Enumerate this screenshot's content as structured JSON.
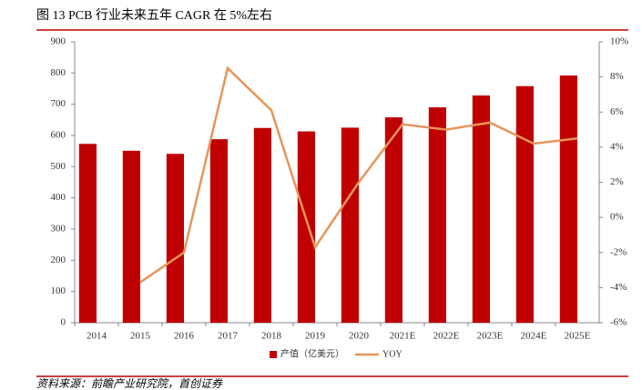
{
  "chart_data": {
    "type": "bar",
    "title": "图 13 PCB 行业未来五年 CAGR 在 5%左右",
    "source": "资料来源：前瞻产业研究院，首创证券",
    "categories": [
      "2014",
      "2015",
      "2016",
      "2017",
      "2018",
      "2019",
      "2020",
      "2021E",
      "2022E",
      "2023E",
      "2024E",
      "2025E"
    ],
    "series": [
      {
        "name": "产值（亿美元）",
        "type": "bar",
        "color": "#c00000",
        "values": [
          573,
          551,
          541,
          588,
          624,
          613,
          625,
          658,
          690,
          728,
          758,
          792
        ]
      },
      {
        "name": "YOY",
        "type": "line",
        "axis": "y2",
        "color": "#e6955a",
        "values": [
          null,
          -3.7,
          -2.0,
          8.5,
          6.1,
          -1.7,
          2.0,
          5.3,
          5.0,
          5.4,
          4.2,
          4.5
        ]
      }
    ],
    "ylim": [
      0,
      900
    ],
    "yticks": [
      0,
      100,
      200,
      300,
      400,
      500,
      600,
      700,
      800,
      900
    ],
    "y2lim": [
      -6,
      10
    ],
    "y2ticks": [
      {
        "value": 10,
        "label": "10%"
      },
      {
        "value": 8,
        "label": "8%"
      },
      {
        "value": 6,
        "label": "6%"
      },
      {
        "value": 4,
        "label": "4%"
      },
      {
        "value": 2,
        "label": "2%"
      },
      {
        "value": 0,
        "label": "0%"
      },
      {
        "value": -2,
        "label": "-2%"
      },
      {
        "value": -4,
        "label": "-4%"
      },
      {
        "value": -6,
        "label": "-6%"
      }
    ],
    "legend": "bottom"
  }
}
